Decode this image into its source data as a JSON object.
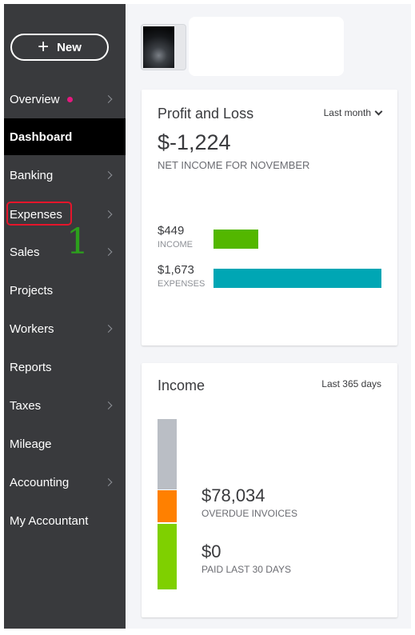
{
  "sidebar": {
    "new_label": "New",
    "items": [
      {
        "label": "Overview",
        "has_chevron": true,
        "has_dot": true
      },
      {
        "label": "Dashboard",
        "active": true
      },
      {
        "label": "Banking",
        "has_chevron": true
      },
      {
        "label": "Expenses",
        "has_chevron": true,
        "highlighted": true
      },
      {
        "label": "Sales",
        "has_chevron": true
      },
      {
        "label": "Projects"
      },
      {
        "label": "Workers",
        "has_chevron": true
      },
      {
        "label": "Reports"
      },
      {
        "label": "Taxes",
        "has_chevron": true
      },
      {
        "label": "Mileage"
      },
      {
        "label": "Accounting",
        "has_chevron": true
      },
      {
        "label": "My Accountant"
      }
    ],
    "annotation_number": "1",
    "colors": {
      "background": "#393a3d",
      "active": "#000000",
      "highlight": "#e5152b",
      "annotation": "#2ca01c",
      "dot": "#e5197f"
    }
  },
  "profit_loss": {
    "title": "Profit and Loss",
    "period": "Last month",
    "net_income": "$-1,224",
    "net_income_caption": "NET INCOME FOR NOVEMBER",
    "income_value": "$449",
    "income_label": "INCOME",
    "income_amount": 449,
    "expenses_value": "$1,673",
    "expenses_label": "EXPENSES",
    "expenses_amount": 1673,
    "colors": {
      "income": "#53b700",
      "expenses": "#00a6b4"
    }
  },
  "income": {
    "title": "Income",
    "period": "Last 365 days",
    "overdue_value": "$78,034",
    "overdue_label": "OVERDUE INVOICES",
    "paid_value": "$0",
    "paid_label": "PAID LAST 30 DAYS",
    "colors": {
      "open": "#babec5",
      "overdue": "#ff8000",
      "paid": "#7fd000"
    }
  }
}
